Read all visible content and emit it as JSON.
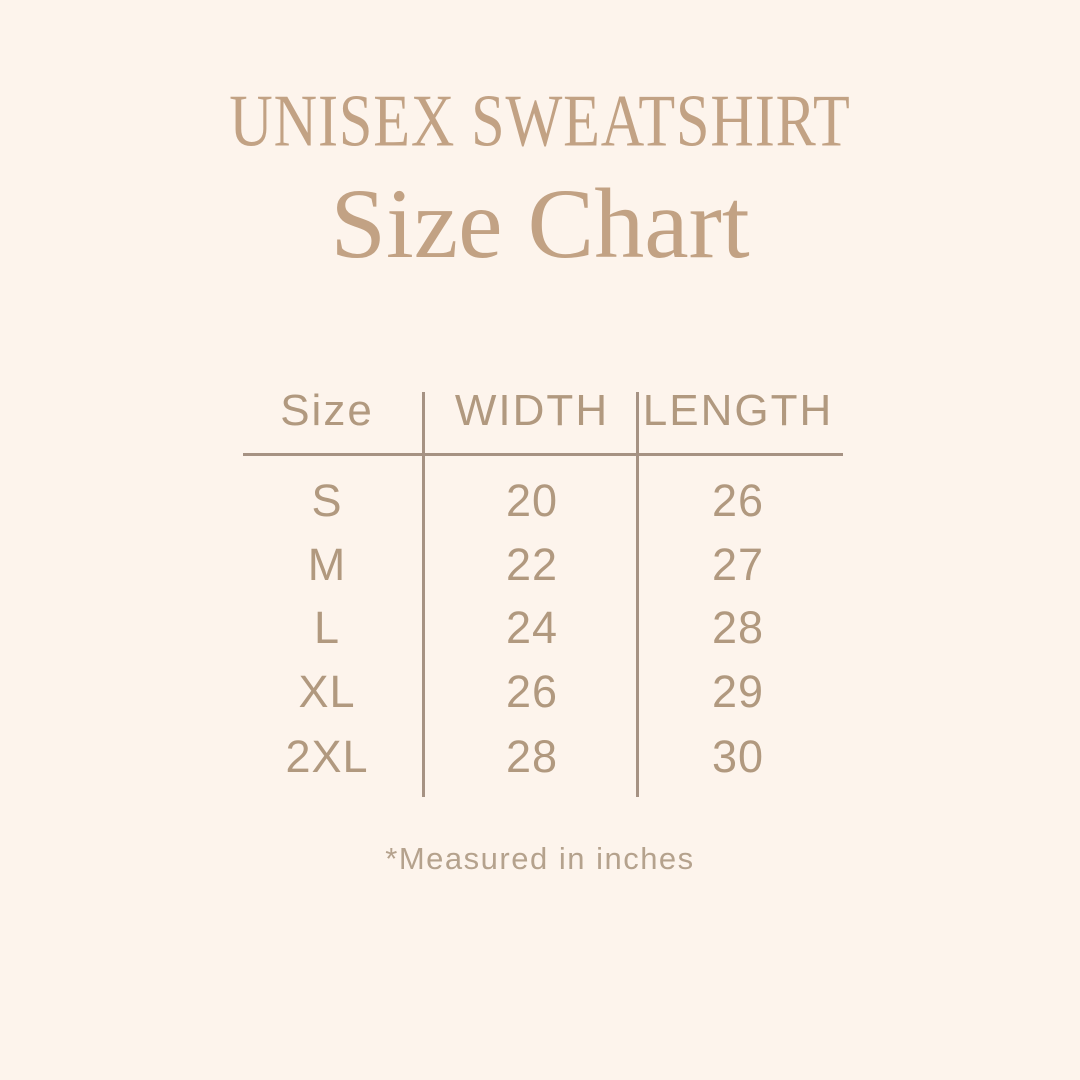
{
  "page": {
    "background_color": "#fdf4ec",
    "accent_color": "#c2a284",
    "table_text_color": "#b1997f",
    "line_color": "#a69283"
  },
  "header": {
    "product": "UNISEX SWEATSHIRT",
    "title": "Size Chart"
  },
  "table": {
    "columns": [
      "Size",
      "WIDTH",
      "LENGTH"
    ],
    "rows": [
      {
        "size": "S",
        "width": "20",
        "length": "26"
      },
      {
        "size": "M",
        "width": "22",
        "length": "27"
      },
      {
        "size": "L",
        "width": "24",
        "length": "28"
      },
      {
        "size": "XL",
        "width": "26",
        "length": "29"
      },
      {
        "size": "2XL",
        "width": "28",
        "length": "30"
      }
    ]
  },
  "footnote": "*Measured in inches"
}
